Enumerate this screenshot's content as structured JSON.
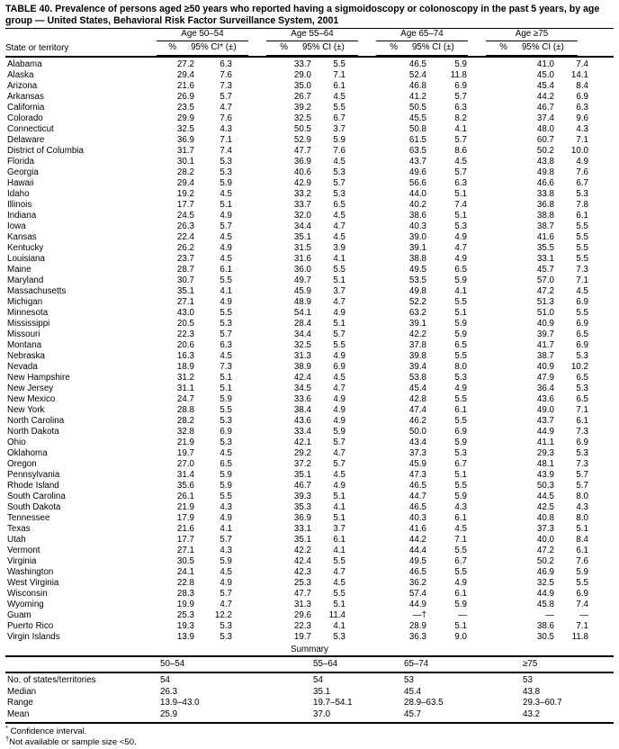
{
  "title": "TABLE 40.  Prevalence of persons aged ≥50 years who reported having a sigmoidoscopy or colonoscopy in the past 5 years, by age group — United States, Behavioral Risk Factor Surveillance System, 2001",
  "header": {
    "state_col": "State or territory",
    "groups": [
      {
        "label": "Age 50–54",
        "pct": "%",
        "ci": "95% CI* (±)"
      },
      {
        "label": "Age 55–64",
        "pct": "%",
        "ci": "95% CI (±)"
      },
      {
        "label": "Age 65–74",
        "pct": "%",
        "ci": "95% CI (±)"
      },
      {
        "label": "Age ≥75",
        "pct": "%",
        "ci": "95% CI (±)"
      }
    ]
  },
  "rows": [
    {
      "state": "Alabama",
      "values": [
        "27.2",
        "6.3",
        "33.7",
        "5.5",
        "46.5",
        "5.9",
        "41.0",
        "7.4"
      ]
    },
    {
      "state": "Alaska",
      "values": [
        "29.4",
        "7.6",
        "29.0",
        "7.1",
        "52.4",
        "11.8",
        "45.0",
        "14.1"
      ]
    },
    {
      "state": "Arizona",
      "values": [
        "21.6",
        "7.3",
        "35.0",
        "6.1",
        "46.8",
        "6.9",
        "45.4",
        "8.4"
      ]
    },
    {
      "state": "Arkansas",
      "values": [
        "26.9",
        "5.7",
        "26.7",
        "4.5",
        "41.2",
        "5.7",
        "44.2",
        "6.9"
      ]
    },
    {
      "state": "California",
      "values": [
        "23.5",
        "4.7",
        "39.2",
        "5.5",
        "50.5",
        "6.3",
        "46.7",
        "6.3"
      ]
    },
    {
      "state": "Colorado",
      "values": [
        "29.9",
        "7.6",
        "32.5",
        "6.7",
        "45.5",
        "8.2",
        "37.4",
        "9.6"
      ]
    },
    {
      "state": "Connecticut",
      "values": [
        "32.5",
        "4.3",
        "50.5",
        "3.7",
        "50.8",
        "4.1",
        "48.0",
        "4.3"
      ]
    },
    {
      "state": "Delaware",
      "values": [
        "36.9",
        "7.1",
        "52.9",
        "5.9",
        "61.5",
        "5.7",
        "60.7",
        "7.1"
      ]
    },
    {
      "state": "District of Columbia",
      "values": [
        "31.7",
        "7.4",
        "47.7",
        "7.6",
        "63.5",
        "8.6",
        "50.2",
        "10.0"
      ]
    },
    {
      "state": "Florida",
      "values": [
        "30.1",
        "5.3",
        "36.9",
        "4.5",
        "43.7",
        "4.5",
        "43.8",
        "4.9"
      ]
    },
    {
      "state": "Georgia",
      "values": [
        "28.2",
        "5.3",
        "40.6",
        "5.3",
        "49.6",
        "5.7",
        "49.8",
        "7.6"
      ]
    },
    {
      "state": "Hawaii",
      "values": [
        "29.4",
        "5.9",
        "42.9",
        "5.7",
        "56.6",
        "6.3",
        "46.6",
        "6.7"
      ]
    },
    {
      "state": "Idaho",
      "values": [
        "19.2",
        "4.5",
        "33.2",
        "5.3",
        "44.0",
        "5.1",
        "33.8",
        "5.3"
      ]
    },
    {
      "state": "Illinois",
      "values": [
        "17.7",
        "5.1",
        "33.7",
        "6.5",
        "40.2",
        "7.4",
        "36.8",
        "7.8"
      ]
    },
    {
      "state": "Indiana",
      "values": [
        "24.5",
        "4.9",
        "32.0",
        "4.5",
        "38.6",
        "5.1",
        "38.8",
        "6.1"
      ]
    },
    {
      "state": "Iowa",
      "values": [
        "26.3",
        "5.7",
        "34.4",
        "4.7",
        "40.3",
        "5.3",
        "38.7",
        "5.5"
      ]
    },
    {
      "state": "Kansas",
      "values": [
        "22.4",
        "4.5",
        "35.1",
        "4.5",
        "39.0",
        "4.9",
        "41.6",
        "5.5"
      ]
    },
    {
      "state": "Kentucky",
      "values": [
        "26.2",
        "4.9",
        "31.5",
        "3.9",
        "39.1",
        "4.7",
        "35.5",
        "5.5"
      ]
    },
    {
      "state": "Louisiana",
      "values": [
        "23.7",
        "4.5",
        "31.6",
        "4.1",
        "38.8",
        "4.9",
        "33.1",
        "5.5"
      ]
    },
    {
      "state": "Maine",
      "values": [
        "28.7",
        "6.1",
        "36.0",
        "5.5",
        "49.5",
        "6.5",
        "45.7",
        "7.3"
      ]
    },
    {
      "state": "Maryland",
      "values": [
        "30.7",
        "5.5",
        "49.7",
        "5.1",
        "53.5",
        "5.9",
        "57.0",
        "7.1"
      ]
    },
    {
      "state": "Massachusetts",
      "values": [
        "35.1",
        "4.1",
        "45.9",
        "3.7",
        "49.8",
        "4.1",
        "47.2",
        "4.5"
      ]
    },
    {
      "state": "Michigan",
      "values": [
        "27.1",
        "4.9",
        "48.9",
        "4.7",
        "52.2",
        "5.5",
        "51.3",
        "6.9"
      ]
    },
    {
      "state": "Minnesota",
      "values": [
        "43.0",
        "5.5",
        "54.1",
        "4.9",
        "63.2",
        "5.1",
        "51.0",
        "5.5"
      ]
    },
    {
      "state": "Mississippi",
      "values": [
        "20.5",
        "5.3",
        "28.4",
        "5.1",
        "39.1",
        "5.9",
        "40.9",
        "6.9"
      ]
    },
    {
      "state": "Missouri",
      "values": [
        "22.3",
        "5.7",
        "34.4",
        "5.7",
        "42.2",
        "5.9",
        "39.7",
        "6.5"
      ]
    },
    {
      "state": "Montana",
      "values": [
        "20.6",
        "6.3",
        "32.5",
        "5.5",
        "37.8",
        "6.5",
        "41.7",
        "6.9"
      ]
    },
    {
      "state": "Nebraska",
      "values": [
        "16.3",
        "4.5",
        "31.3",
        "4.9",
        "39.8",
        "5.5",
        "38.7",
        "5.3"
      ]
    },
    {
      "state": "Nevada",
      "values": [
        "18.9",
        "7.3",
        "38.9",
        "6.9",
        "39.4",
        "8.0",
        "40.9",
        "10.2"
      ]
    },
    {
      "state": "New Hampshire",
      "values": [
        "31.2",
        "5.1",
        "42.4",
        "4.5",
        "53.8",
        "5.3",
        "47.9",
        "6.5"
      ]
    },
    {
      "state": "New Jersey",
      "values": [
        "31.1",
        "5.1",
        "34.5",
        "4.7",
        "45.4",
        "4.9",
        "36.4",
        "5.3"
      ]
    },
    {
      "state": "New Mexico",
      "values": [
        "24.7",
        "5.9",
        "33.6",
        "4.9",
        "42.8",
        "5.5",
        "43.6",
        "6.5"
      ]
    },
    {
      "state": "New York",
      "values": [
        "28.8",
        "5.5",
        "38.4",
        "4.9",
        "47.4",
        "6.1",
        "49.0",
        "7.1"
      ]
    },
    {
      "state": "North Carolina",
      "values": [
        "28.2",
        "5.3",
        "43.6",
        "4.9",
        "46.2",
        "5.5",
        "43.7",
        "6.1"
      ]
    },
    {
      "state": "North Dakota",
      "values": [
        "32.8",
        "6.9",
        "33.4",
        "5.9",
        "50.0",
        "6.9",
        "44.9",
        "7.3"
      ]
    },
    {
      "state": "Ohio",
      "values": [
        "21.9",
        "5.3",
        "42.1",
        "5.7",
        "43.4",
        "5.9",
        "41.1",
        "6.9"
      ]
    },
    {
      "state": "Oklahoma",
      "values": [
        "19.7",
        "4.5",
        "29.2",
        "4.7",
        "37.3",
        "5.3",
        "29.3",
        "5.3"
      ]
    },
    {
      "state": "Oregon",
      "values": [
        "27.0",
        "6.5",
        "37.2",
        "5.7",
        "45.9",
        "6.7",
        "48.1",
        "7.3"
      ]
    },
    {
      "state": "Pennsylvania",
      "values": [
        "31.4",
        "5.9",
        "35.1",
        "4.5",
        "47.3",
        "5.1",
        "43.9",
        "5.7"
      ]
    },
    {
      "state": "Rhode Island",
      "values": [
        "35.6",
        "5.9",
        "46.7",
        "4.9",
        "46.5",
        "5.5",
        "50.3",
        "5.7"
      ]
    },
    {
      "state": "South Carolina",
      "values": [
        "26.1",
        "5.5",
        "39.3",
        "5.1",
        "44.7",
        "5.9",
        "44.5",
        "8.0"
      ]
    },
    {
      "state": "South Dakota",
      "values": [
        "21.9",
        "4.3",
        "35.3",
        "4.1",
        "46.5",
        "4.3",
        "42.5",
        "4.3"
      ]
    },
    {
      "state": "Tennessee",
      "values": [
        "17.9",
        "4.9",
        "36.9",
        "5.1",
        "40.3",
        "6.1",
        "40.8",
        "8.0"
      ]
    },
    {
      "state": "Texas",
      "values": [
        "21.6",
        "4.1",
        "33.1",
        "3.7",
        "41.6",
        "4.5",
        "37.3",
        "5.1"
      ]
    },
    {
      "state": "Utah",
      "values": [
        "17.7",
        "5.7",
        "35.1",
        "6.1",
        "44.2",
        "7.1",
        "40.0",
        "8.4"
      ]
    },
    {
      "state": "Vermont",
      "values": [
        "27.1",
        "4.3",
        "42.2",
        "4.1",
        "44.4",
        "5.5",
        "47.2",
        "6.1"
      ]
    },
    {
      "state": "Virginia",
      "values": [
        "30.5",
        "5.9",
        "42.4",
        "5.5",
        "49.5",
        "6.7",
        "50.2",
        "7.6"
      ]
    },
    {
      "state": "Washington",
      "values": [
        "24.1",
        "4.5",
        "42.3",
        "4.7",
        "46.5",
        "5.5",
        "46.9",
        "5.9"
      ]
    },
    {
      "state": "West Virginia",
      "values": [
        "22.8",
        "4.9",
        "25.3",
        "4.5",
        "36.2",
        "4.9",
        "32.5",
        "5.5"
      ]
    },
    {
      "state": "Wisconsin",
      "values": [
        "28.3",
        "5.7",
        "47.7",
        "5.5",
        "57.4",
        "6.1",
        "44.9",
        "6.9"
      ]
    },
    {
      "state": "Wyoming",
      "values": [
        "19.9",
        "4.7",
        "31.3",
        "5.1",
        "44.9",
        "5.9",
        "45.8",
        "7.4"
      ]
    },
    {
      "state": "Guam",
      "values": [
        "25.3",
        "12.2",
        "29.6",
        "11.4",
        "—†",
        "—",
        "—",
        "—"
      ]
    },
    {
      "state": "Puerto Rico",
      "values": [
        "19.3",
        "5.3",
        "22.3",
        "4.1",
        "28.9",
        "5.1",
        "38.6",
        "7.1"
      ]
    },
    {
      "state": "Virgin Islands",
      "values": [
        "13.9",
        "5.3",
        "19.7",
        "5.3",
        "36.3",
        "9.0",
        "30.5",
        "11.8"
      ]
    }
  ],
  "summary": {
    "title": "Summary",
    "columns": [
      "50–54",
      "55–64",
      "65–74",
      "≥75"
    ],
    "rows": [
      {
        "label": "No. of states/territories",
        "values": [
          "54",
          "54",
          "53",
          "53"
        ]
      },
      {
        "label": "Median",
        "values": [
          "26.3",
          "35.1",
          "45.4",
          "43.8"
        ]
      },
      {
        "label": "Range",
        "values": [
          "13.9–43.0",
          "19.7–54.1",
          "28.9–63.5",
          "29.3–60.7"
        ]
      },
      {
        "label": "Mean",
        "values": [
          "25.9",
          "37.0",
          "45.7",
          "43.2"
        ]
      }
    ]
  },
  "footnotes": [
    {
      "marker": "*",
      "text": "Confidence interval."
    },
    {
      "marker": "†",
      "text": "Not available or sample size <50."
    }
  ]
}
